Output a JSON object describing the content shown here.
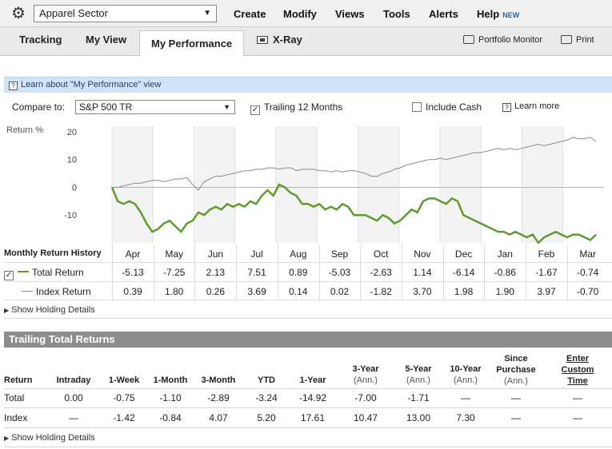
{
  "toolbar": {
    "portfolio": "Apparel Sector",
    "menus": [
      "Create",
      "Modify",
      "Views",
      "Tools",
      "Alerts",
      "Help"
    ],
    "new_badge": "NEW"
  },
  "tabs": [
    "Tracking",
    "My View",
    "My Performance",
    "X-Ray"
  ],
  "tools": {
    "monitor": "Portfolio Monitor",
    "print": "Print"
  },
  "learn": "Learn about \"My Performance\" view",
  "compare": {
    "label": "Compare to:",
    "value": "S&P 500 TR",
    "trailing": "Trailing 12 Months",
    "trailing_checked": true,
    "include_cash": "Include Cash",
    "include_cash_checked": false,
    "learn_more": "Learn more"
  },
  "chart_data": {
    "type": "line",
    "ylabel": "Return %",
    "ylim": [
      -20,
      22
    ],
    "yticks": [
      20,
      10,
      0,
      -10
    ],
    "colors": {
      "total": "#5f9b2e",
      "index": "#8a8a8a"
    },
    "series": [
      {
        "name": "Total Return",
        "values": [
          0,
          -5,
          -6,
          -5,
          -6,
          -9,
          -13,
          -16,
          -15,
          -13,
          -12,
          -14,
          -16,
          -13,
          -12,
          -9,
          -10,
          -8,
          -7,
          -8,
          -6,
          -7,
          -6,
          -7,
          -5,
          -6,
          -3,
          -1,
          -3,
          1,
          0,
          -2,
          -3,
          -6,
          -6,
          -7,
          -6,
          -8,
          -7,
          -8,
          -6,
          -7,
          -10,
          -10,
          -10,
          -11,
          -12,
          -10,
          -11,
          -13,
          -12,
          -10,
          -8,
          -9,
          -5,
          -4,
          -4,
          -5,
          -6,
          -4,
          -5,
          -10,
          -11,
          -12,
          -13,
          -14,
          -15,
          -16,
          -16,
          -17,
          -16,
          -17,
          -18,
          -17,
          -20,
          -18,
          -17,
          -16,
          -17,
          -18,
          -17,
          -17,
          -18,
          -19,
          -17
        ]
      },
      {
        "name": "Index Return",
        "values": [
          0,
          0,
          0.5,
          1,
          1.5,
          1.5,
          2,
          2.5,
          2.5,
          2,
          2.5,
          3,
          3,
          3.5,
          1,
          -1,
          2,
          3,
          4,
          4,
          4.5,
          5,
          5.5,
          6,
          6,
          6.5,
          6.5,
          7,
          7,
          6.5,
          7,
          7,
          6,
          6.5,
          6.5,
          6.5,
          6,
          6,
          5.5,
          6,
          5.5,
          6,
          6,
          5.5,
          5,
          4,
          4,
          5,
          5.5,
          6.5,
          7,
          8,
          8.5,
          9,
          9.5,
          10,
          10,
          10.5,
          10,
          10.5,
          11,
          11.5,
          12,
          12.5,
          12.5,
          13,
          13.5,
          14,
          13.5,
          14,
          13.5,
          14,
          14.5,
          15,
          15.5,
          15,
          15.5,
          16,
          16.5,
          17,
          18,
          17.5,
          17.5,
          18,
          16.5
        ]
      }
    ]
  },
  "history": {
    "title": "Monthly Return History",
    "months": [
      "Apr",
      "May",
      "Jun",
      "Jul",
      "Aug",
      "Sep",
      "Oct",
      "Nov",
      "Dec",
      "Jan",
      "Feb",
      "Mar"
    ],
    "rows": [
      {
        "label": "Total Return",
        "values": [
          "-5.13",
          "-7.25",
          "2.13",
          "7.51",
          "0.89",
          "-5.03",
          "-2.63",
          "1.14",
          "-6.14",
          "-0.86",
          "-1.67",
          "-0.74"
        ]
      },
      {
        "label": "Index Return",
        "values": [
          "0.39",
          "1.80",
          "0.26",
          "3.69",
          "0.14",
          "0.02",
          "-1.82",
          "3.70",
          "1.98",
          "1.90",
          "3.97",
          "-0.70"
        ]
      }
    ],
    "show_details": "Show Holding Details"
  },
  "trailing": {
    "title": "Trailing Total Returns",
    "headers": [
      {
        "label": "Return",
        "sub": ""
      },
      {
        "label": "Intraday",
        "sub": ""
      },
      {
        "label": "1-Week",
        "sub": ""
      },
      {
        "label": "1-Month",
        "sub": ""
      },
      {
        "label": "3-Month",
        "sub": ""
      },
      {
        "label": "YTD",
        "sub": ""
      },
      {
        "label": "1-Year",
        "sub": ""
      },
      {
        "label": "3-Year",
        "sub": "(Ann.)"
      },
      {
        "label": "5-Year",
        "sub": "(Ann.)"
      },
      {
        "label": "10-Year",
        "sub": "(Ann.)"
      },
      {
        "label": "Since Purchase",
        "sub": "(Ann.)"
      },
      {
        "label": "Enter Custom Time",
        "sub": ""
      }
    ],
    "rows": [
      {
        "label": "Total",
        "values": [
          "0.00",
          "-0.75",
          "-1.10",
          "-2.89",
          "-3.24",
          "-14.92",
          "-7.00",
          "-1.71",
          "—",
          "—",
          "—"
        ]
      },
      {
        "label": "Index",
        "values": [
          "—",
          "-1.42",
          "-0.84",
          "4.07",
          "5.20",
          "17.61",
          "10.47",
          "13.00",
          "7.30",
          "—",
          "—"
        ]
      }
    ],
    "show_details": "Show Holding Details"
  }
}
